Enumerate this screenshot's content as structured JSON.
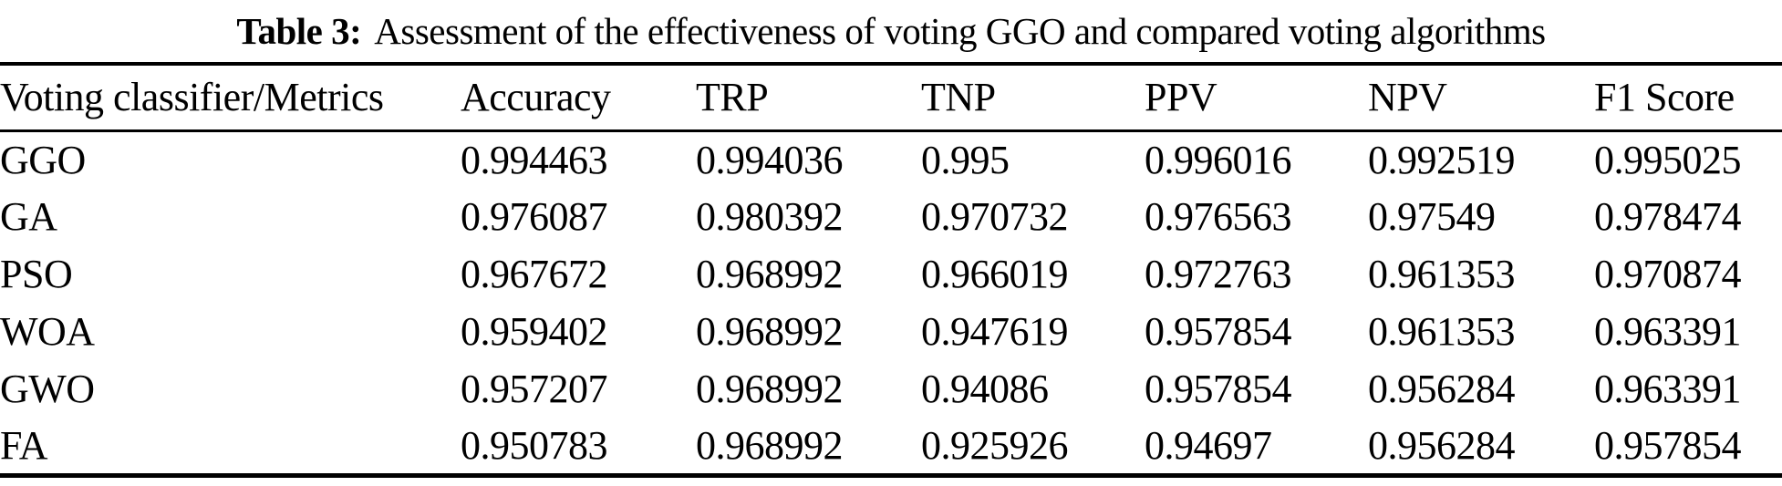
{
  "caption": {
    "label": "Table 3:",
    "text": "Assessment of the effectiveness of voting GGO and compared voting algorithms"
  },
  "chart_data": {
    "type": "table",
    "title": "Assessment of the effectiveness of voting GGO and compared voting algorithms",
    "columns": [
      "Voting classifier/Metrics",
      "Accuracy",
      "TRP",
      "TNP",
      "PPV",
      "NPV",
      "F1 Score"
    ],
    "rows": [
      [
        "GGO",
        "0.994463",
        "0.994036",
        "0.995",
        "0.996016",
        "0.992519",
        "0.995025"
      ],
      [
        "GA",
        "0.976087",
        "0.980392",
        "0.970732",
        "0.976563",
        "0.97549",
        "0.978474"
      ],
      [
        "PSO",
        "0.967672",
        "0.968992",
        "0.966019",
        "0.972763",
        "0.961353",
        "0.970874"
      ],
      [
        "WOA",
        "0.959402",
        "0.968992",
        "0.947619",
        "0.957854",
        "0.961353",
        "0.963391"
      ],
      [
        "GWO",
        "0.957207",
        "0.968992",
        "0.94086",
        "0.957854",
        "0.956284",
        "0.963391"
      ],
      [
        "FA",
        "0.950783",
        "0.968992",
        "0.925926",
        "0.94697",
        "0.956284",
        "0.957854"
      ]
    ]
  }
}
